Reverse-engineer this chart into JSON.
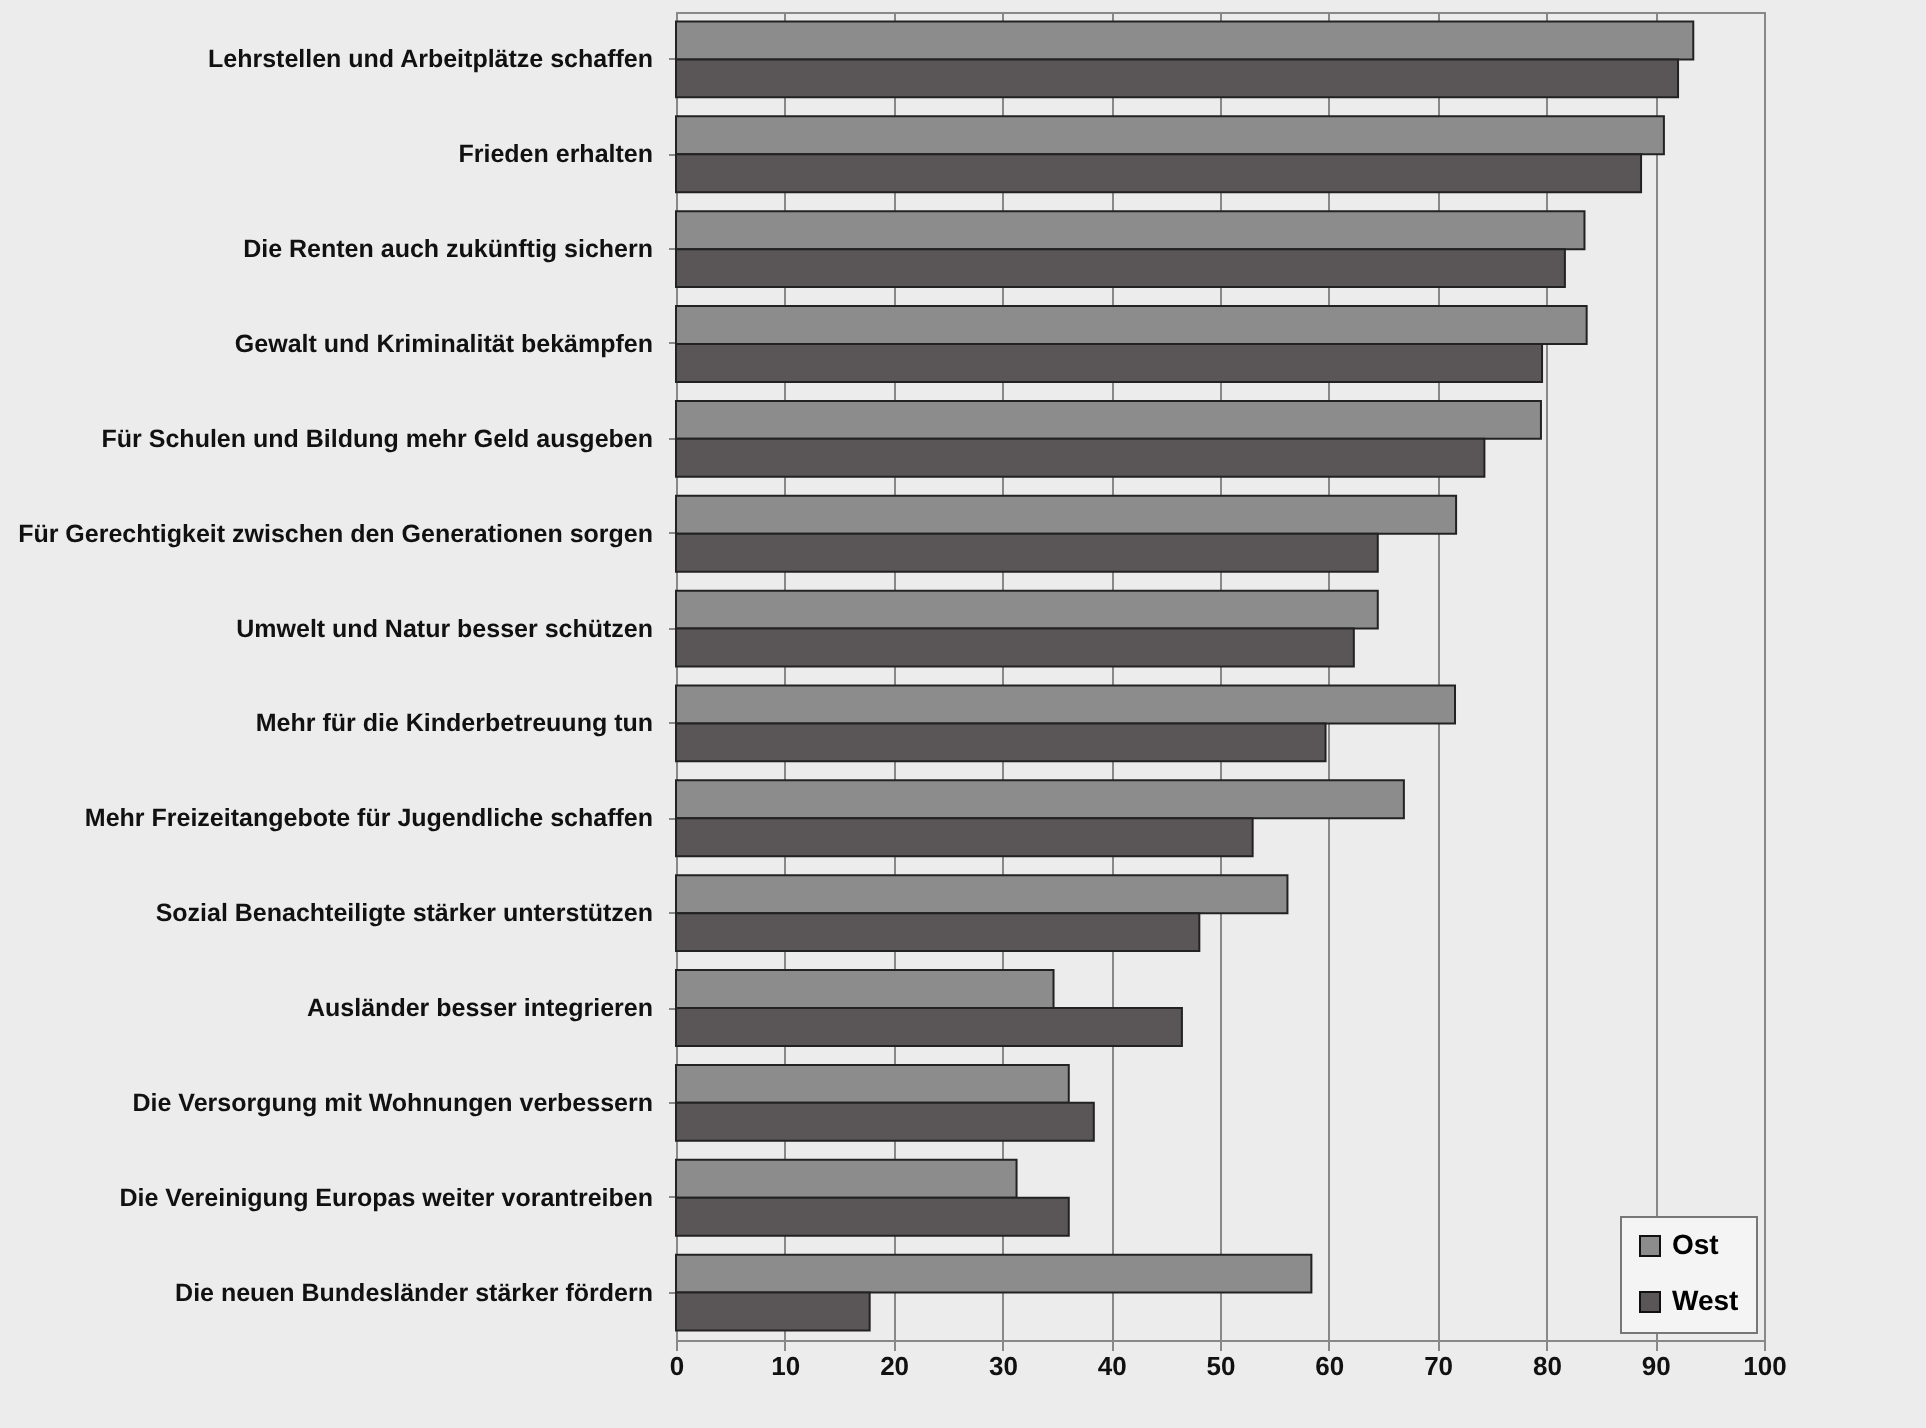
{
  "chart_data": {
    "type": "bar",
    "orientation": "horizontal",
    "categories": [
      "Lehrstellen und Arbeitplätze schaffen",
      "Frieden erhalten",
      "Die Renten auch zukünftig sichern",
      "Gewalt und Kriminalität bekämpfen",
      "Für Schulen und Bildung mehr Geld ausgeben",
      "Für Gerechtigkeit zwischen den Generationen sorgen",
      "Umwelt und Natur besser schützen",
      "Mehr für die Kinderbetreuung tun",
      "Mehr Freizeitangebote für Jugendliche schaffen",
      "Sozial Benachteiligte stärker unterstützen",
      "Ausländer besser integrieren",
      "Die Versorgung mit Wohnungen verbessern",
      "Die Vereinigung Europas weiter vorantreiben",
      "Die neuen Bundesländer stärker fördern"
    ],
    "series": [
      {
        "name": "Ost",
        "color": "#8c8c8c",
        "values": [
          93.5,
          90.8,
          83.5,
          83.7,
          79.5,
          71.7,
          64.5,
          71.6,
          66.9,
          56.2,
          34.7,
          36.1,
          31.3,
          58.4
        ]
      },
      {
        "name": "West",
        "color": "#5a5658",
        "values": [
          92.1,
          88.7,
          81.7,
          79.6,
          74.3,
          64.5,
          62.3,
          59.7,
          53.0,
          48.1,
          46.5,
          38.4,
          36.1,
          17.8
        ]
      }
    ],
    "xlim": [
      0,
      100
    ],
    "xticks": [
      0,
      10,
      20,
      30,
      40,
      50,
      60,
      70,
      80,
      90,
      100
    ],
    "grid": "x",
    "legend": "bottom right"
  }
}
